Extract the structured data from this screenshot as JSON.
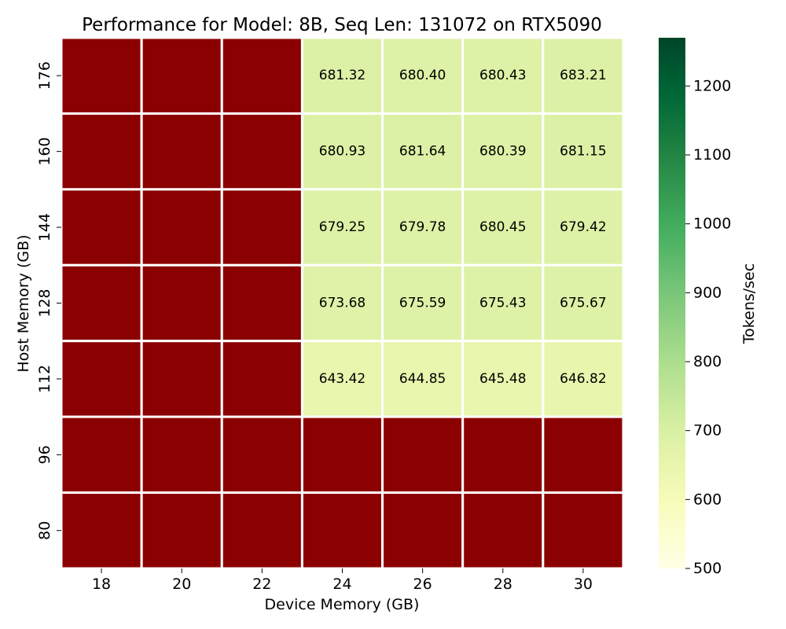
{
  "chart_data": {
    "type": "heatmap",
    "title": "Performance for Model: 8B, Seq Len: 131072 on RTX5090",
    "xlabel": "Device Memory (GB)",
    "ylabel": "Host Memory (GB)",
    "x_categories": [
      "18",
      "20",
      "22",
      "24",
      "26",
      "28",
      "30"
    ],
    "y_categories": [
      "176",
      "160",
      "144",
      "128",
      "112",
      "96",
      "80"
    ],
    "values": [
      [
        null,
        null,
        null,
        681.32,
        680.4,
        680.43,
        683.21
      ],
      [
        null,
        null,
        null,
        680.93,
        681.64,
        680.39,
        681.15
      ],
      [
        null,
        null,
        null,
        679.25,
        679.78,
        680.45,
        679.42
      ],
      [
        null,
        null,
        null,
        673.68,
        675.59,
        675.43,
        675.67
      ],
      [
        null,
        null,
        null,
        643.42,
        644.85,
        645.48,
        646.82
      ],
      [
        null,
        null,
        null,
        null,
        null,
        null,
        null
      ],
      [
        null,
        null,
        null,
        null,
        null,
        null,
        null
      ]
    ],
    "value_labels": [
      [
        "",
        "",
        "",
        "681.32",
        "680.40",
        "680.43",
        "683.21"
      ],
      [
        "",
        "",
        "",
        "680.93",
        "681.64",
        "680.39",
        "681.15"
      ],
      [
        "",
        "",
        "",
        "679.25",
        "679.78",
        "680.45",
        "679.42"
      ],
      [
        "",
        "",
        "",
        "673.68",
        "675.59",
        "675.43",
        "675.67"
      ],
      [
        "",
        "",
        "",
        "643.42",
        "644.85",
        "645.48",
        "646.82"
      ],
      [
        "",
        "",
        "",
        "",
        "",
        "",
        ""
      ],
      [
        "",
        "",
        "",
        "",
        "",
        "",
        ""
      ]
    ],
    "missing_color": "#8b0000",
    "colormap": "YlGn",
    "colorbar": {
      "label": "Tokens/sec",
      "min": 500,
      "max": 1270,
      "ticks": [
        500,
        600,
        700,
        800,
        900,
        1000,
        1100,
        1200
      ],
      "tick_labels": [
        "500",
        "600",
        "700",
        "800",
        "900",
        "1000",
        "1100",
        "1200"
      ]
    }
  }
}
